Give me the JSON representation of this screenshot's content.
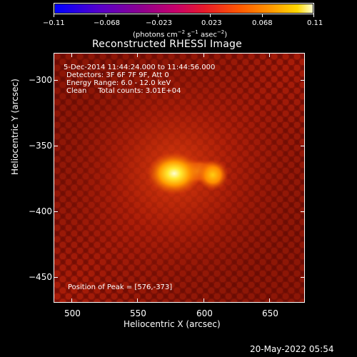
{
  "colorbar": {
    "ticks": [
      "−0.11",
      "−0.068",
      "−0.023",
      "0.023",
      "0.068",
      "0.11"
    ],
    "units_main": "(photons cm",
    "units_exp1": "−2",
    "units_s": " s",
    "units_exp2": "−1",
    "units_asec": " asec",
    "units_exp3": "−2",
    "units_close": ")"
  },
  "title": "Reconstructed RHESSI Image",
  "annotations": {
    "time_range": "5-Dec-2014 11:44:24.000 to 11:44:56.000",
    "detectors": "Detectors: 3F 6F 7F 9F, Att 0",
    "energy_range": "Energy Range: 6.0 - 12.0 keV",
    "method": "Clean     Total counts: 3.01E+04",
    "peak_position": "Position of Peak = [576,-373]"
  },
  "axes": {
    "y_label": "Heliocentric Y (arcsec)",
    "x_label": "Heliocentric X (arcsec)",
    "y_ticks": [
      "−300",
      "−350",
      "−400",
      "−450"
    ],
    "x_ticks": [
      "500",
      "550",
      "600",
      "650"
    ]
  },
  "timestamp": "20-May-2022 05:54"
}
